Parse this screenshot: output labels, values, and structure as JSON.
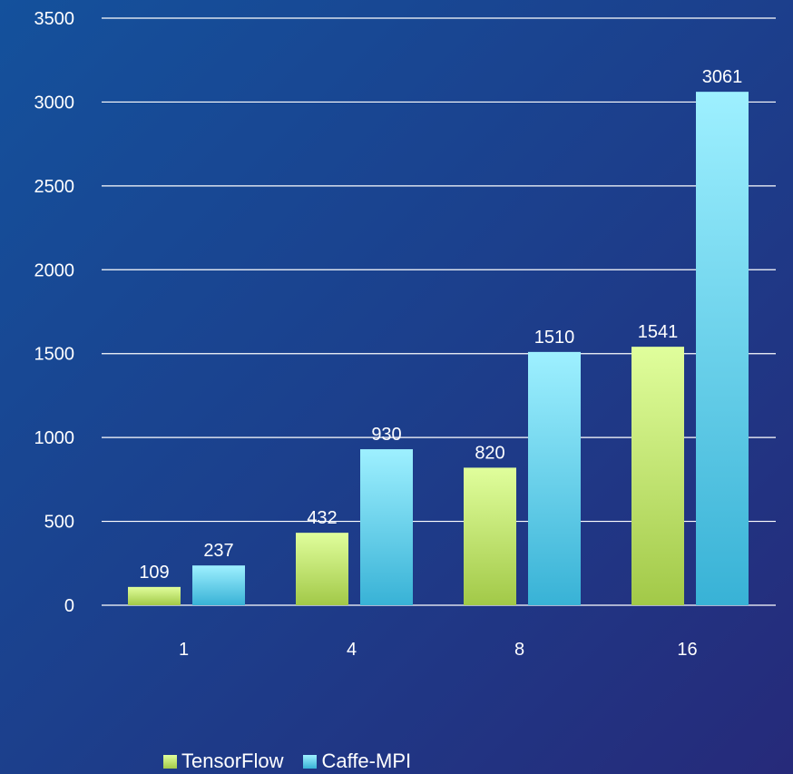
{
  "chart_data": {
    "type": "bar",
    "categories": [
      "1",
      "4",
      "8",
      "16"
    ],
    "series": [
      {
        "name": "TensorFlow",
        "values": [
          109,
          432,
          820,
          1541
        ],
        "color_top": "#e0fe9c",
        "color_bottom": "#a2c948"
      },
      {
        "name": "Caffe-MPI",
        "values": [
          237,
          930,
          1510,
          3061
        ],
        "color_top": "#9ef0ff",
        "color_bottom": "#38b2d6"
      }
    ],
    "ylim": [
      0,
      3500
    ],
    "yticks": [
      0,
      500,
      1000,
      1500,
      2000,
      2500,
      3000,
      3500
    ],
    "grid": true,
    "legend_position": "bottom",
    "text_color": "#ffffff",
    "grid_color": "#ffffff"
  }
}
